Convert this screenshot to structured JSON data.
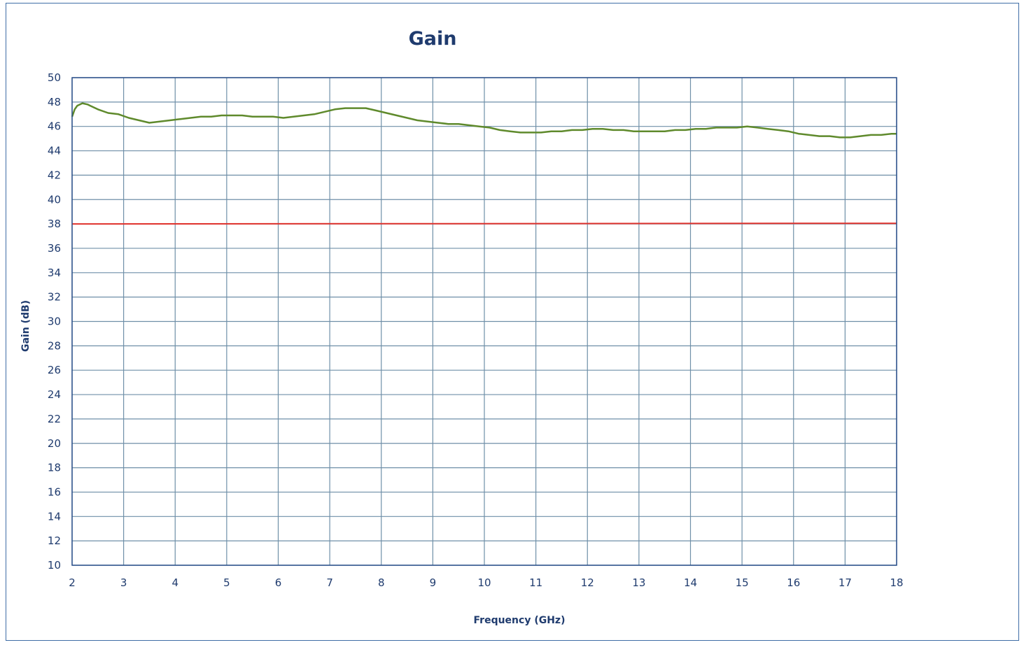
{
  "chart_data": {
    "type": "line",
    "title": "Gain",
    "xlabel": "Frequency (GHz)",
    "ylabel": "Gain (dB)",
    "xlim": [
      2,
      18
    ],
    "ylim": [
      10,
      50
    ],
    "xticks": [
      2,
      3,
      4,
      5,
      6,
      7,
      8,
      9,
      10,
      11,
      12,
      13,
      14,
      15,
      16,
      17,
      18
    ],
    "yticks": [
      10,
      12,
      14,
      16,
      18,
      20,
      22,
      24,
      26,
      28,
      30,
      32,
      34,
      36,
      38,
      40,
      42,
      44,
      46,
      48,
      50
    ],
    "grid": true,
    "series": [
      {
        "color": "#5f8a2c",
        "x": [
          2.0,
          2.05,
          2.1,
          2.2,
          2.3,
          2.5,
          2.7,
          2.9,
          3.1,
          3.3,
          3.5,
          3.7,
          3.9,
          4.1,
          4.3,
          4.5,
          4.7,
          4.9,
          5.1,
          5.3,
          5.5,
          5.7,
          5.9,
          6.1,
          6.3,
          6.5,
          6.7,
          6.9,
          7.1,
          7.3,
          7.5,
          7.7,
          7.9,
          8.1,
          8.3,
          8.5,
          8.7,
          8.9,
          9.1,
          9.3,
          9.5,
          9.7,
          9.9,
          10.1,
          10.3,
          10.5,
          10.7,
          10.9,
          11.1,
          11.3,
          11.5,
          11.7,
          11.9,
          12.1,
          12.3,
          12.5,
          12.7,
          12.9,
          13.1,
          13.3,
          13.5,
          13.7,
          13.9,
          14.1,
          14.3,
          14.5,
          14.7,
          14.9,
          15.1,
          15.3,
          15.5,
          15.7,
          15.9,
          16.1,
          16.3,
          16.5,
          16.7,
          16.9,
          17.1,
          17.3,
          17.5,
          17.7,
          17.9,
          18.0
        ],
        "y": [
          46.8,
          47.4,
          47.7,
          47.9,
          47.8,
          47.4,
          47.1,
          47.0,
          46.7,
          46.5,
          46.3,
          46.4,
          46.5,
          46.6,
          46.7,
          46.8,
          46.8,
          46.9,
          46.9,
          46.9,
          46.8,
          46.8,
          46.8,
          46.7,
          46.8,
          46.9,
          47.0,
          47.2,
          47.4,
          47.5,
          47.5,
          47.5,
          47.3,
          47.1,
          46.9,
          46.7,
          46.5,
          46.4,
          46.3,
          46.2,
          46.2,
          46.1,
          46.0,
          45.9,
          45.7,
          45.6,
          45.5,
          45.5,
          45.5,
          45.6,
          45.6,
          45.7,
          45.7,
          45.8,
          45.8,
          45.7,
          45.7,
          45.6,
          45.6,
          45.6,
          45.6,
          45.7,
          45.7,
          45.8,
          45.8,
          45.9,
          45.9,
          45.9,
          46.0,
          45.9,
          45.8,
          45.7,
          45.6,
          45.4,
          45.3,
          45.2,
          45.2,
          45.1,
          45.1,
          45.2,
          45.3,
          45.3,
          45.4,
          45.4
        ]
      },
      {
        "color": "#e0322c",
        "x": [
          2,
          18
        ],
        "y": [
          38.0,
          38.05
        ]
      }
    ]
  }
}
